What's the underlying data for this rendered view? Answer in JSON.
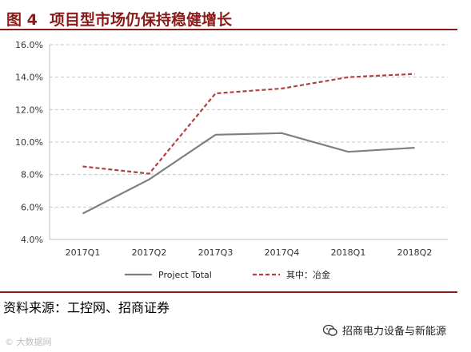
{
  "header": {
    "figure_number": "图 4",
    "title": "项目型市场仍保持稳健增长"
  },
  "chart_data": {
    "type": "line",
    "categories": [
      "2017Q1",
      "2017Q2",
      "2017Q3",
      "2017Q4",
      "2018Q1",
      "2018Q2"
    ],
    "series": [
      {
        "name": "Project Total",
        "values": [
          5.6,
          7.7,
          10.45,
          10.55,
          9.4,
          9.65
        ],
        "color": "#7f7f7f",
        "style": "solid"
      },
      {
        "name": "其中：冶金",
        "values": [
          8.5,
          8.05,
          13.0,
          13.3,
          14.0,
          14.2
        ],
        "color": "#b0413e",
        "style": "dashed"
      }
    ],
    "yticks": [
      "4.0%",
      "6.0%",
      "8.0%",
      "10.0%",
      "12.0%",
      "14.0%",
      "16.0%"
    ],
    "ylim": [
      4,
      16
    ],
    "y_unit": "%",
    "grid": "horizontal dashed",
    "legend_position": "bottom"
  },
  "footer": {
    "source": "资料来源：工控网、招商证券",
    "watermark_left": "© 大数据网",
    "brand": "招商电力设备与新能源",
    "brand_icon": "wechat-icon"
  }
}
